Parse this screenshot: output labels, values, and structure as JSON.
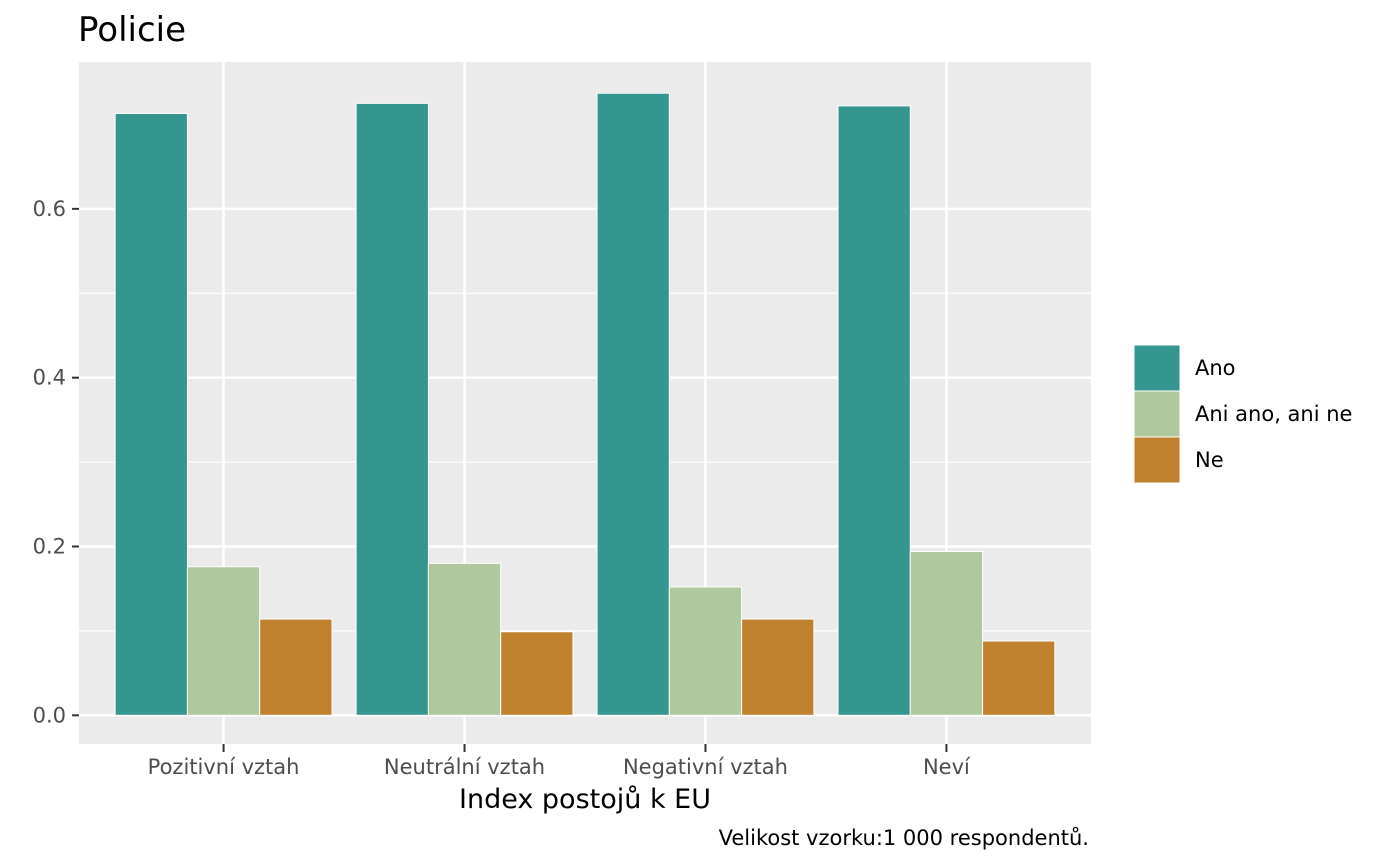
{
  "chart_data": {
    "type": "bar",
    "title": "Policie",
    "xlabel": "Index postojů k EU",
    "ylabel": "",
    "caption": "Velikost vzorku:1 000 respondentů.",
    "categories": [
      "Pozitivní vztah",
      "Neutrální vztah",
      "Negativní vztah",
      "Neví"
    ],
    "series": [
      {
        "name": "Ano",
        "color": "#35958F",
        "values": [
          0.713,
          0.725,
          0.737,
          0.722
        ]
      },
      {
        "name": "Ani ano, ani ne",
        "color": "#AFC89E",
        "values": [
          0.176,
          0.18,
          0.152,
          0.194
        ]
      },
      {
        "name": "Ne",
        "color": "#BF812D",
        "values": [
          0.114,
          0.099,
          0.114,
          0.088
        ]
      }
    ],
    "ylim": [
      -0.034,
      0.774
    ],
    "yticks": [
      0.0,
      0.2,
      0.4,
      0.6
    ],
    "ytick_labels": [
      "0.0",
      "0.2",
      "0.4",
      "0.6"
    ],
    "grid": true,
    "legend_position": "right",
    "panel_background": "#EBEBEB",
    "grid_color": "#FFFFFF"
  }
}
